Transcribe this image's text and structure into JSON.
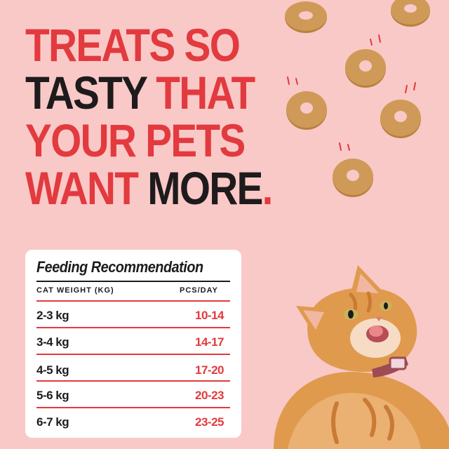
{
  "headline": {
    "line1": "TREATS SO",
    "line2_dark": "TASTY",
    "line2_red": " THAT",
    "line3": "YOUR PETS",
    "line4_red": "WANT",
    "line4_dark": " MORE",
    "line4_dot": "."
  },
  "table": {
    "title": "Feeding Recommendation",
    "col_weight": "CAT WEIGHT (KG)",
    "col_pcs": "PCS/DAY",
    "rows": [
      {
        "weight": "2-3 kg",
        "pcs": "10-14"
      },
      {
        "weight": "3-4 kg",
        "pcs": "14-17"
      },
      {
        "weight": "4-5 kg",
        "pcs": "17-20"
      },
      {
        "weight": "5-6 kg",
        "pcs": "20-23"
      },
      {
        "weight": "6-7 kg",
        "pcs": "23-25"
      }
    ]
  },
  "colors": {
    "background": "#f9c9c7",
    "accent_red": "#e23a3f",
    "dark": "#1e1b1c",
    "treat": "#c8924f",
    "cat_fur": "#e09a4e"
  },
  "illustrations": {
    "treats": "donut-treat-icon",
    "cat": "cat-icon"
  }
}
